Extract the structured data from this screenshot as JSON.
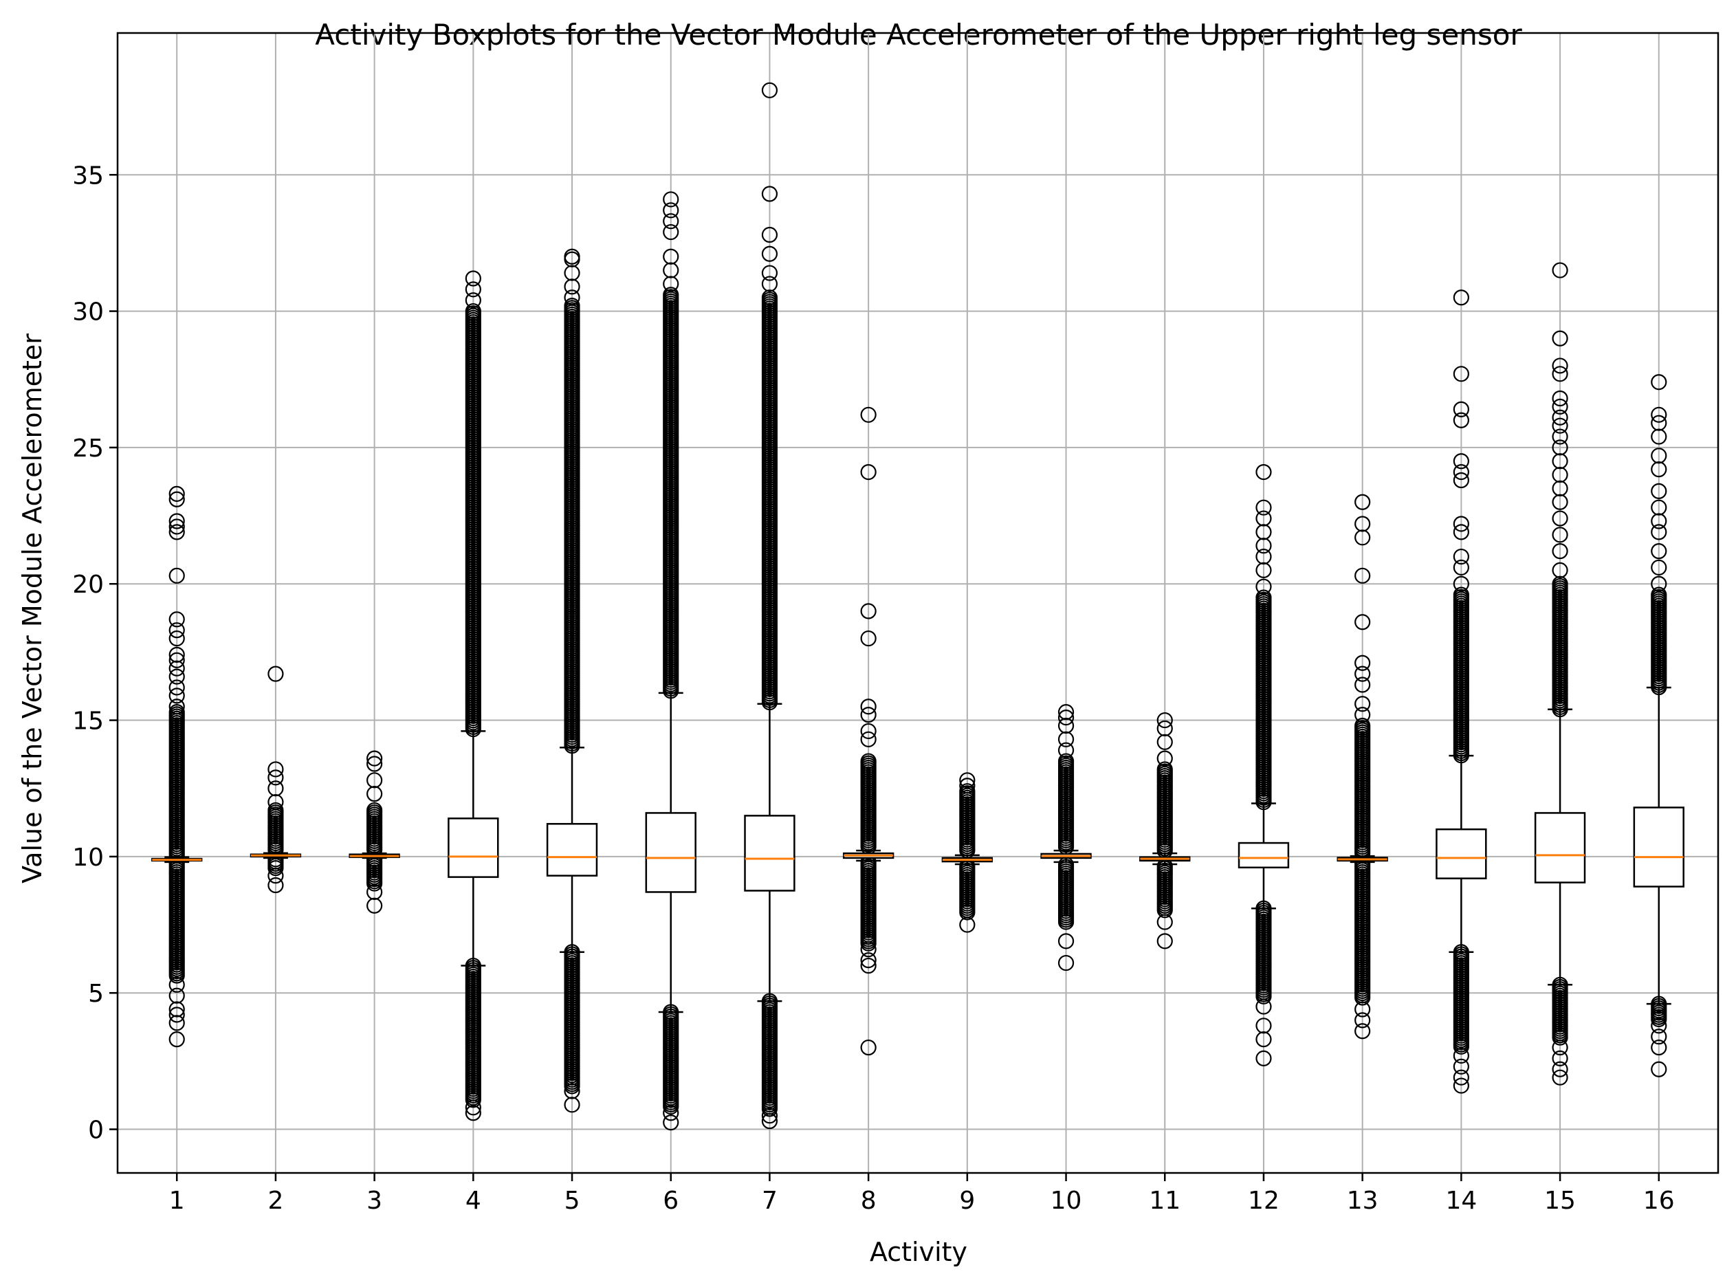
{
  "chart_data": {
    "type": "boxplot",
    "title": "Activity Boxplots for the Vector Module Accelerometer of the Upper right leg sensor",
    "xlabel": "Activity",
    "ylabel": "Value of the Vector Module Accelerometer",
    "categories": [
      "1",
      "2",
      "3",
      "4",
      "5",
      "6",
      "7",
      "8",
      "9",
      "10",
      "11",
      "12",
      "13",
      "14",
      "15",
      "16"
    ],
    "ylim": [
      -1.6,
      40.2
    ],
    "yticks": [
      0,
      5,
      10,
      15,
      20,
      25,
      30,
      35
    ],
    "grid": true,
    "colors": {
      "box": "#000000",
      "median": "#ff7f0e",
      "grid": "#b0b0b0",
      "flier": "#000000"
    },
    "boxes": [
      {
        "category": "1",
        "whisker_low": 9.8,
        "q1": 9.85,
        "median": 9.88,
        "q3": 9.92,
        "whisker_high": 9.98,
        "fliers": [
          3.3,
          3.9,
          4.2,
          4.4,
          4.9,
          5.3,
          23.3,
          23.1,
          22.3,
          22.1,
          21.9,
          20.3,
          18.7,
          18.3,
          18.0,
          17.4,
          17.2,
          16.9,
          16.6,
          16.2,
          15.9,
          15.5
        ],
        "dense_bands": [
          [
            5.6,
            9.75
          ],
          [
            10.05,
            15.3
          ]
        ]
      },
      {
        "category": "2",
        "whisker_low": 9.95,
        "q1": 10.0,
        "median": 10.04,
        "q3": 10.08,
        "whisker_high": 10.13,
        "fliers": [
          8.95,
          9.3,
          16.7,
          13.2,
          12.9,
          12.5,
          12.0
        ],
        "dense_bands": [
          [
            9.5,
            9.9
          ],
          [
            10.2,
            11.7
          ]
        ]
      },
      {
        "category": "3",
        "whisker_low": 9.95,
        "q1": 9.98,
        "median": 10.02,
        "q3": 10.08,
        "whisker_high": 10.12,
        "fliers": [
          8.2,
          8.7,
          13.6,
          13.4,
          12.8,
          12.3
        ],
        "dense_bands": [
          [
            9.0,
            9.9
          ],
          [
            10.2,
            11.7
          ]
        ]
      },
      {
        "category": "4",
        "whisker_low": 6.0,
        "q1": 9.25,
        "median": 10.0,
        "q3": 11.4,
        "whisker_high": 14.6,
        "fliers": [
          0.6,
          0.8,
          31.2,
          30.8,
          30.4
        ],
        "dense_bands": [
          [
            1.0,
            6.0
          ],
          [
            14.6,
            30.0
          ]
        ]
      },
      {
        "category": "5",
        "whisker_low": 6.5,
        "q1": 9.3,
        "median": 9.98,
        "q3": 11.2,
        "whisker_high": 14.0,
        "fliers": [
          0.9,
          1.4,
          32.0,
          31.9,
          31.4,
          30.9,
          30.5
        ],
        "dense_bands": [
          [
            1.5,
            6.5
          ],
          [
            14.0,
            30.2
          ]
        ]
      },
      {
        "category": "6",
        "whisker_low": 4.3,
        "q1": 8.7,
        "median": 9.95,
        "q3": 11.6,
        "whisker_high": 16.0,
        "fliers": [
          0.25,
          0.6,
          34.1,
          33.7,
          33.3,
          32.9,
          32.0,
          31.5,
          31.0
        ],
        "dense_bands": [
          [
            0.8,
            4.3
          ],
          [
            16.0,
            30.6
          ]
        ]
      },
      {
        "category": "7",
        "whisker_low": 4.7,
        "q1": 8.75,
        "median": 9.92,
        "q3": 11.5,
        "whisker_high": 15.6,
        "fliers": [
          0.3,
          0.5,
          38.1,
          34.3,
          32.8,
          32.1,
          31.4,
          31.0
        ],
        "dense_bands": [
          [
            0.7,
            4.7
          ],
          [
            15.6,
            30.5
          ]
        ]
      },
      {
        "category": "8",
        "whisker_low": 9.85,
        "q1": 9.95,
        "median": 10.04,
        "q3": 10.12,
        "whisker_high": 10.22,
        "fliers": [
          3.0,
          6.0,
          6.2,
          6.6,
          26.2,
          24.1,
          19.0,
          18.0,
          15.5,
          15.2,
          14.6,
          14.3
        ],
        "dense_bands": [
          [
            6.8,
            9.8
          ],
          [
            10.3,
            13.5
          ]
        ]
      },
      {
        "category": "9",
        "whisker_low": 9.72,
        "q1": 9.82,
        "median": 9.88,
        "q3": 9.95,
        "whisker_high": 10.05,
        "fliers": [
          7.5,
          12.8,
          12.6
        ],
        "dense_bands": [
          [
            7.9,
            9.65
          ],
          [
            10.15,
            12.4
          ]
        ]
      },
      {
        "category": "10",
        "whisker_low": 9.8,
        "q1": 9.95,
        "median": 10.02,
        "q3": 10.1,
        "whisker_high": 10.22,
        "fliers": [
          6.1,
          6.9,
          15.3,
          15.1,
          14.8,
          14.3,
          13.9
        ],
        "dense_bands": [
          [
            7.6,
            9.7
          ],
          [
            10.3,
            13.5
          ]
        ]
      },
      {
        "category": "11",
        "whisker_low": 9.72,
        "q1": 9.85,
        "median": 9.92,
        "q3": 9.98,
        "whisker_high": 10.12,
        "fliers": [
          6.9,
          7.6,
          15.0,
          14.7,
          14.2,
          13.6
        ],
        "dense_bands": [
          [
            8.0,
            9.65
          ],
          [
            10.2,
            13.2
          ]
        ]
      },
      {
        "category": "12",
        "whisker_low": 8.1,
        "q1": 9.6,
        "median": 9.95,
        "q3": 10.5,
        "whisker_high": 11.95,
        "fliers": [
          2.6,
          3.3,
          3.8,
          4.5,
          24.1,
          22.8,
          22.4,
          21.9,
          21.4,
          21.0,
          20.5,
          19.9
        ],
        "dense_bands": [
          [
            4.8,
            8.1
          ],
          [
            11.95,
            19.5
          ]
        ]
      },
      {
        "category": "13",
        "whisker_low": 9.8,
        "q1": 9.85,
        "median": 9.9,
        "q3": 9.96,
        "whisker_high": 10.02,
        "fliers": [
          3.6,
          4.0,
          4.4,
          23.0,
          22.2,
          21.7,
          20.3,
          18.6,
          17.1,
          16.7,
          16.3,
          15.6,
          15.2
        ],
        "dense_bands": [
          [
            4.8,
            9.75
          ],
          [
            10.1,
            14.8
          ]
        ]
      },
      {
        "category": "14",
        "whisker_low": 6.5,
        "q1": 9.2,
        "median": 9.95,
        "q3": 11.0,
        "whisker_high": 13.7,
        "fliers": [
          1.6,
          1.9,
          2.3,
          2.7,
          30.5,
          27.7,
          26.4,
          26.0,
          24.5,
          24.1,
          23.8,
          22.2,
          21.9,
          21.0,
          20.6,
          20.0
        ],
        "dense_bands": [
          [
            3.0,
            6.5
          ],
          [
            13.7,
            19.6
          ]
        ]
      },
      {
        "category": "15",
        "whisker_low": 5.3,
        "q1": 9.05,
        "median": 10.05,
        "q3": 11.6,
        "whisker_high": 15.4,
        "fliers": [
          1.9,
          2.2,
          2.6,
          3.0,
          31.5,
          29.0,
          28.0,
          27.7,
          26.8,
          26.5,
          26.1,
          25.8,
          25.4,
          25.0,
          24.5,
          24.0,
          23.5,
          23.0,
          22.4,
          21.8,
          21.2,
          20.5
        ],
        "dense_bands": [
          [
            3.3,
            5.3
          ],
          [
            15.4,
            20.0
          ]
        ]
      },
      {
        "category": "16",
        "whisker_low": 4.6,
        "q1": 8.9,
        "median": 9.98,
        "q3": 11.8,
        "whisker_high": 16.2,
        "fliers": [
          2.2,
          3.0,
          3.4,
          3.8,
          27.4,
          26.2,
          25.9,
          25.4,
          24.7,
          24.2,
          23.4,
          22.8,
          22.3,
          21.9,
          21.2,
          20.6,
          20.0
        ],
        "dense_bands": [
          [
            4.0,
            4.6
          ],
          [
            16.2,
            19.6
          ]
        ]
      }
    ]
  }
}
